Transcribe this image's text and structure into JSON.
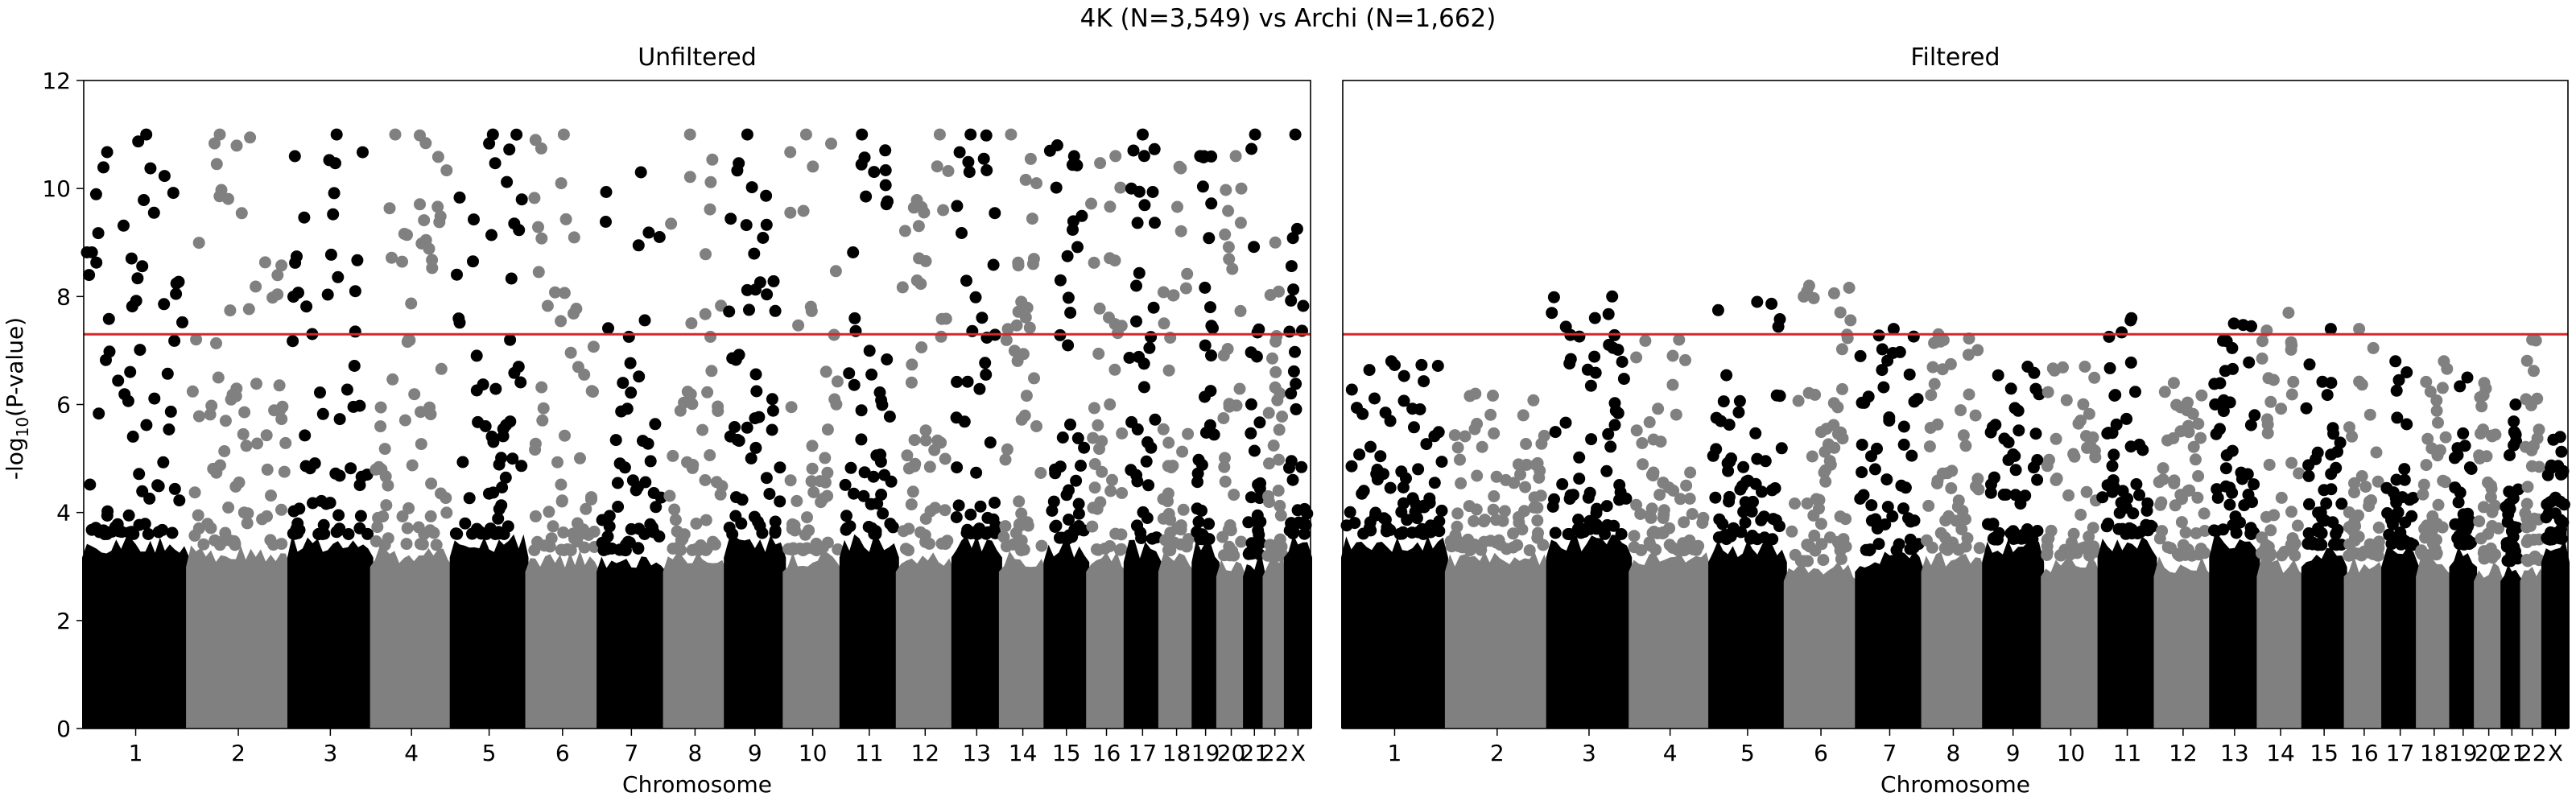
{
  "figure": {
    "title": "4K (N=3,549) vs Archi (N=1,662)",
    "ylabel_prefix": "-log",
    "ylabel_sub": "10",
    "ylabel_suffix": "(P-value)"
  },
  "colors": {
    "odd_chromosome": "#000000",
    "even_chromosome": "#808080",
    "threshold_line": "#d62728",
    "axis": "#000000"
  },
  "chart_data": [
    {
      "type": "scatter",
      "subtype": "manhattan",
      "title": "Unfiltered",
      "xlabel": "Chromosome",
      "ylabel": "-log10(P-value)",
      "ylim": [
        0,
        12
      ],
      "yticks": [
        0,
        2,
        4,
        6,
        8,
        10,
        12
      ],
      "grid": false,
      "genome_wide_threshold": 7.3,
      "categories": [
        "1",
        "2",
        "3",
        "4",
        "5",
        "6",
        "7",
        "8",
        "9",
        "10",
        "11",
        "12",
        "13",
        "14",
        "15",
        "16",
        "17",
        "18",
        "19",
        "20",
        "21",
        "22",
        "X"
      ],
      "tick_labels": [
        "1",
        "2",
        "3",
        "4",
        "5",
        "6",
        "7",
        "8",
        "9",
        "10",
        "11",
        "12",
        "13",
        "14",
        "15",
        "16",
        "17",
        "18",
        "19",
        "20",
        "21",
        "22",
        "X"
      ],
      "band_top": [
        3.6,
        3.4,
        3.6,
        3.4,
        3.6,
        3.3,
        3.3,
        3.3,
        3.6,
        3.3,
        3.6,
        3.3,
        3.6,
        3.3,
        3.5,
        3.3,
        3.5,
        3.3,
        3.5,
        3.2,
        3.2,
        3.2,
        3.6
      ],
      "max_value": [
        11.0,
        11.0,
        11.0,
        11.0,
        11.0,
        11.0,
        10.3,
        11.0,
        11.0,
        11.0,
        11.0,
        11.0,
        11.0,
        11.0,
        10.8,
        10.6,
        11.0,
        10.4,
        10.6,
        10.6,
        11.0,
        9.0,
        11.0
      ]
    },
    {
      "type": "scatter",
      "subtype": "manhattan",
      "title": "Filtered",
      "xlabel": "Chromosome",
      "ylabel": "",
      "ylim": [
        0,
        12
      ],
      "grid": false,
      "genome_wide_threshold": 7.3,
      "categories": [
        "1",
        "2",
        "3",
        "4",
        "5",
        "6",
        "7",
        "8",
        "9",
        "10",
        "11",
        "12",
        "13",
        "14",
        "15",
        "16",
        "17",
        "18",
        "19",
        "20",
        "21",
        "22",
        "X"
      ],
      "tick_labels": [
        "1",
        "2",
        "3",
        "4",
        "5",
        "6",
        "7",
        "8",
        "9",
        "10",
        "11",
        "12",
        "13",
        "14",
        "15",
        "16",
        "17",
        "18",
        "19",
        "20",
        "21",
        "22",
        "X"
      ],
      "band_top": [
        3.6,
        3.3,
        3.6,
        3.3,
        3.5,
        3.1,
        3.3,
        3.3,
        3.5,
        3.2,
        3.6,
        3.2,
        3.6,
        3.2,
        3.4,
        3.2,
        3.4,
        3.2,
        3.4,
        3.1,
        3.1,
        3.1,
        3.5
      ],
      "max_value": [
        6.8,
        6.2,
        8.0,
        7.2,
        7.9,
        8.2,
        7.4,
        7.3,
        6.7,
        6.7,
        7.6,
        6.4,
        7.5,
        7.7,
        7.4,
        7.4,
        6.8,
        6.8,
        6.5,
        6.4,
        6.0,
        7.2,
        5.4
      ]
    }
  ],
  "chromosome_relative_lengths": [
    249,
    243,
    198,
    191,
    181,
    171,
    159,
    146,
    141,
    136,
    135,
    133,
    114,
    107,
    102,
    90,
    83,
    80,
    59,
    64,
    47,
    51,
    60
  ]
}
